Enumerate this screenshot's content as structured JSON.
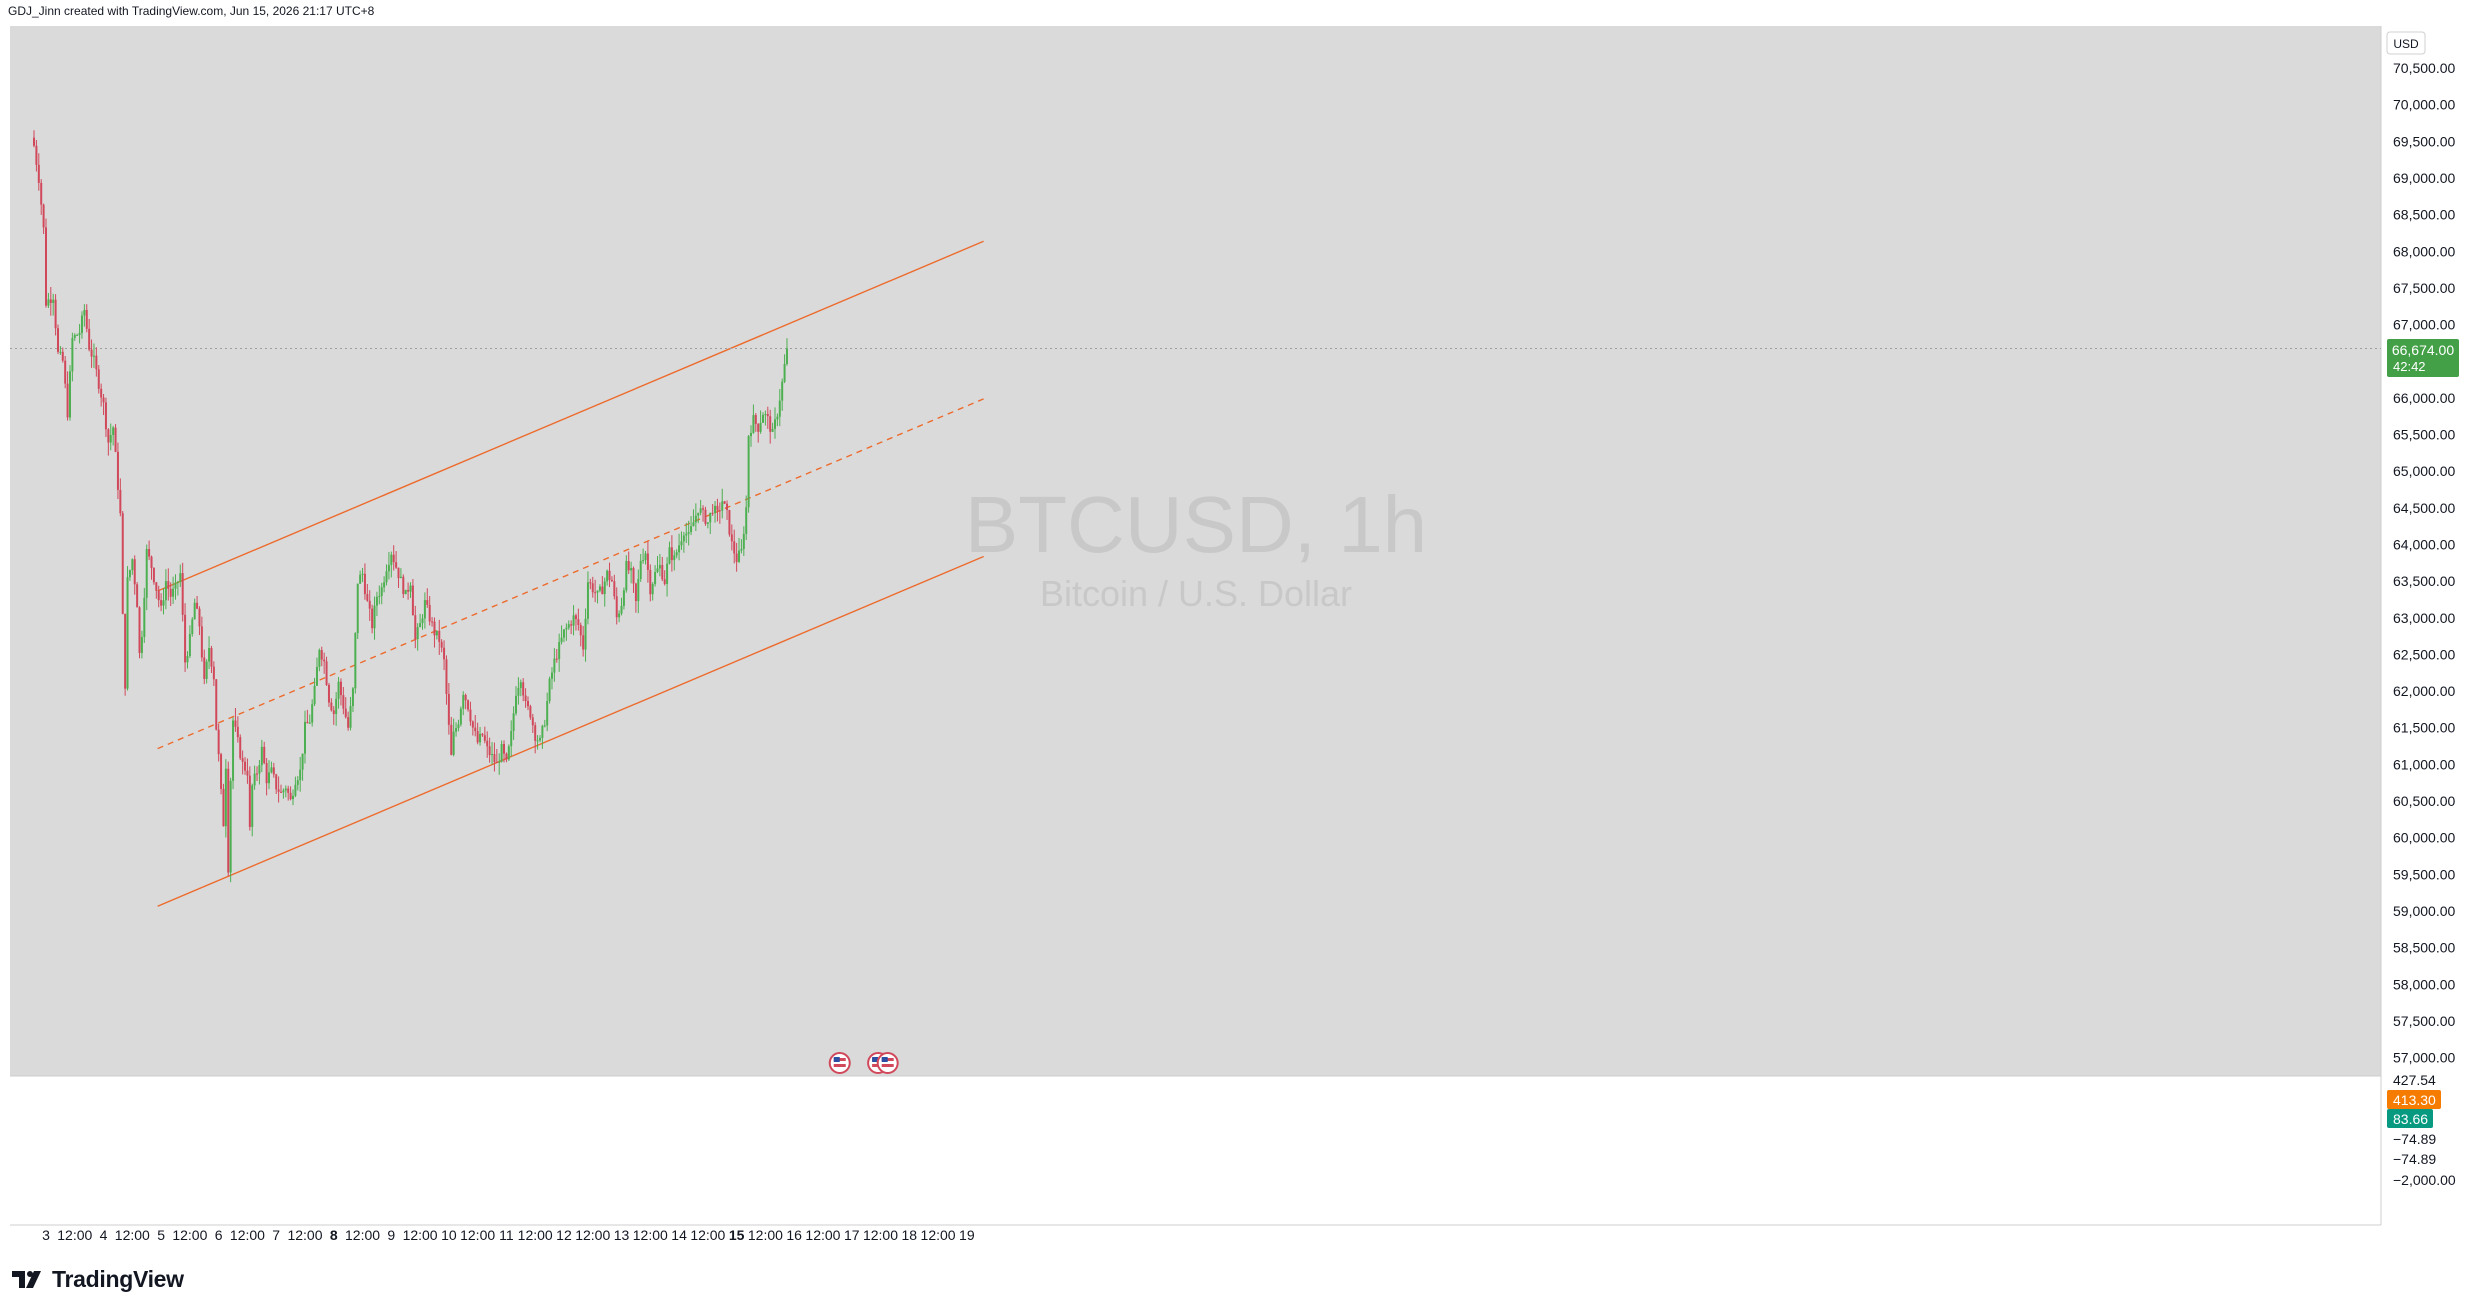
{
  "credit": "GDJ_Jinn created with TradingView.com, Jun 15, 2026 21:17 UTC+8",
  "brand": "TradingView",
  "currency": "USD",
  "watermark": {
    "symbol": "BTCUSD, 1h",
    "description": "Bitcoin / U.S. Dollar"
  },
  "colors": {
    "up": "#4caf50",
    "down": "#d0485a",
    "channel": "#ed6b2d",
    "last_price_bg": "#43a047",
    "pane_bg": "#dadada",
    "indicator_orange": "#f57c00",
    "indicator_teal": "#089981"
  },
  "chart_data": {
    "type": "candlestick",
    "symbol": "BTCUSD",
    "interval": "1h",
    "ylim": [
      56780,
      70680
    ],
    "y_ticks": [
      "70,500.00",
      "70,000.00",
      "69,500.00",
      "69,000.00",
      "68,500.00",
      "68,000.00",
      "67,500.00",
      "67,000.00",
      "66,500.00",
      "66,000.00",
      "65,500.00",
      "65,000.00",
      "64,500.00",
      "64,000.00",
      "63,500.00",
      "63,000.00",
      "62,500.00",
      "62,000.00",
      "61,500.00",
      "61,000.00",
      "60,500.00",
      "60,000.00",
      "59,500.00",
      "59,000.00",
      "58,500.00",
      "58,000.00",
      "57,500.00",
      "57,000.00"
    ],
    "time_ticks": [
      {
        "label": "3",
        "t": 0
      },
      {
        "label": "12:00",
        "t": 12
      },
      {
        "label": "4",
        "t": 24
      },
      {
        "label": "12:00",
        "t": 36
      },
      {
        "label": "5",
        "t": 48
      },
      {
        "label": "12:00",
        "t": 60
      },
      {
        "label": "6",
        "t": 72
      },
      {
        "label": "12:00",
        "t": 84
      },
      {
        "label": "7",
        "t": 96
      },
      {
        "label": "12:00",
        "t": 108
      },
      {
        "label": "8",
        "t": 120,
        "bold": true
      },
      {
        "label": "12:00",
        "t": 132
      },
      {
        "label": "9",
        "t": 144
      },
      {
        "label": "12:00",
        "t": 156
      },
      {
        "label": "10",
        "t": 168
      },
      {
        "label": "12:00",
        "t": 180
      },
      {
        "label": "11",
        "t": 192
      },
      {
        "label": "12:00",
        "t": 204
      },
      {
        "label": "12",
        "t": 216
      },
      {
        "label": "12:00",
        "t": 228
      },
      {
        "label": "13",
        "t": 240
      },
      {
        "label": "12:00",
        "t": 252
      },
      {
        "label": "14",
        "t": 264
      },
      {
        "label": "12:00",
        "t": 276
      },
      {
        "label": "15",
        "t": 288,
        "bold": true
      },
      {
        "label": "12:00",
        "t": 300
      },
      {
        "label": "16",
        "t": 312
      },
      {
        "label": "12:00",
        "t": 324
      },
      {
        "label": "17",
        "t": 336
      },
      {
        "label": "12:00",
        "t": 348
      },
      {
        "label": "18",
        "t": 360
      },
      {
        "label": "12:00",
        "t": 372
      },
      {
        "label": "19",
        "t": 384
      }
    ],
    "x_start_hours": -5.5,
    "x_end_hours": 392,
    "close_path": [
      {
        "t": -5.5,
        "p": 69550
      },
      {
        "t": -3,
        "p": 69000
      },
      {
        "t": -1,
        "p": 68300
      },
      {
        "t": 0,
        "p": 67300
      },
      {
        "t": 3,
        "p": 67400
      },
      {
        "t": 5,
        "p": 66600
      },
      {
        "t": 7,
        "p": 66500
      },
      {
        "t": 9,
        "p": 65800
      },
      {
        "t": 11,
        "p": 66800
      },
      {
        "t": 14,
        "p": 66900
      },
      {
        "t": 16,
        "p": 67200
      },
      {
        "t": 18,
        "p": 66700
      },
      {
        "t": 20,
        "p": 66500
      },
      {
        "t": 22,
        "p": 66200
      },
      {
        "t": 24,
        "p": 65900
      },
      {
        "t": 26,
        "p": 65400
      },
      {
        "t": 28,
        "p": 65600
      },
      {
        "t": 30,
        "p": 64800
      },
      {
        "t": 31,
        "p": 64400
      },
      {
        "t": 32,
        "p": 63000
      },
      {
        "t": 33,
        "p": 62100
      },
      {
        "t": 34,
        "p": 63500
      },
      {
        "t": 36,
        "p": 63800
      },
      {
        "t": 38,
        "p": 63200
      },
      {
        "t": 39,
        "p": 62500
      },
      {
        "t": 40,
        "p": 62800
      },
      {
        "t": 42,
        "p": 63900
      },
      {
        "t": 44,
        "p": 63700
      },
      {
        "t": 46,
        "p": 63400
      },
      {
        "t": 48,
        "p": 63100
      },
      {
        "t": 50,
        "p": 63500
      },
      {
        "t": 52,
        "p": 63300
      },
      {
        "t": 54,
        "p": 63400
      },
      {
        "t": 56,
        "p": 63600
      },
      {
        "t": 58,
        "p": 62400
      },
      {
        "t": 60,
        "p": 62700
      },
      {
        "t": 62,
        "p": 63200
      },
      {
        "t": 64,
        "p": 62900
      },
      {
        "t": 66,
        "p": 62100
      },
      {
        "t": 68,
        "p": 62600
      },
      {
        "t": 70,
        "p": 62200
      },
      {
        "t": 71,
        "p": 61500
      },
      {
        "t": 72,
        "p": 61100
      },
      {
        "t": 73,
        "p": 60600
      },
      {
        "t": 74,
        "p": 60200
      },
      {
        "t": 75,
        "p": 61000
      },
      {
        "t": 76,
        "p": 59600
      },
      {
        "t": 77,
        "p": 60800
      },
      {
        "t": 78,
        "p": 61600
      },
      {
        "t": 80,
        "p": 61300
      },
      {
        "t": 82,
        "p": 61000
      },
      {
        "t": 84,
        "p": 60900
      },
      {
        "t": 85,
        "p": 60100
      },
      {
        "t": 86,
        "p": 60700
      },
      {
        "t": 88,
        "p": 60900
      },
      {
        "t": 90,
        "p": 61200
      },
      {
        "t": 92,
        "p": 60800
      },
      {
        "t": 94,
        "p": 60900
      },
      {
        "t": 96,
        "p": 60700
      },
      {
        "t": 98,
        "p": 60600
      },
      {
        "t": 100,
        "p": 60700
      },
      {
        "t": 102,
        "p": 60500
      },
      {
        "t": 104,
        "p": 60800
      },
      {
        "t": 106,
        "p": 60900
      },
      {
        "t": 108,
        "p": 61500
      },
      {
        "t": 110,
        "p": 61600
      },
      {
        "t": 112,
        "p": 62000
      },
      {
        "t": 114,
        "p": 62600
      },
      {
        "t": 116,
        "p": 62400
      },
      {
        "t": 118,
        "p": 61900
      },
      {
        "t": 120,
        "p": 61700
      },
      {
        "t": 122,
        "p": 62100
      },
      {
        "t": 124,
        "p": 61800
      },
      {
        "t": 126,
        "p": 61500
      },
      {
        "t": 128,
        "p": 62000
      },
      {
        "t": 130,
        "p": 63500
      },
      {
        "t": 132,
        "p": 63600
      },
      {
        "t": 134,
        "p": 63200
      },
      {
        "t": 136,
        "p": 62900
      },
      {
        "t": 138,
        "p": 63300
      },
      {
        "t": 140,
        "p": 63400
      },
      {
        "t": 142,
        "p": 63700
      },
      {
        "t": 144,
        "p": 63900
      },
      {
        "t": 146,
        "p": 63700
      },
      {
        "t": 148,
        "p": 63500
      },
      {
        "t": 150,
        "p": 63300
      },
      {
        "t": 152,
        "p": 63500
      },
      {
        "t": 154,
        "p": 62700
      },
      {
        "t": 156,
        "p": 62900
      },
      {
        "t": 158,
        "p": 63200
      },
      {
        "t": 160,
        "p": 63000
      },
      {
        "t": 162,
        "p": 62800
      },
      {
        "t": 164,
        "p": 62700
      },
      {
        "t": 166,
        "p": 62400
      },
      {
        "t": 168,
        "p": 61500
      },
      {
        "t": 169,
        "p": 61100
      },
      {
        "t": 170,
        "p": 61400
      },
      {
        "t": 172,
        "p": 61600
      },
      {
        "t": 174,
        "p": 62000
      },
      {
        "t": 176,
        "p": 61800
      },
      {
        "t": 178,
        "p": 61500
      },
      {
        "t": 180,
        "p": 61300
      },
      {
        "t": 182,
        "p": 61400
      },
      {
        "t": 184,
        "p": 61200
      },
      {
        "t": 186,
        "p": 61100
      },
      {
        "t": 188,
        "p": 61000
      },
      {
        "t": 190,
        "p": 61200
      },
      {
        "t": 192,
        "p": 61000
      },
      {
        "t": 194,
        "p": 61400
      },
      {
        "t": 196,
        "p": 62000
      },
      {
        "t": 198,
        "p": 62200
      },
      {
        "t": 200,
        "p": 61800
      },
      {
        "t": 202,
        "p": 61700
      },
      {
        "t": 204,
        "p": 61400
      },
      {
        "t": 206,
        "p": 61300
      },
      {
        "t": 208,
        "p": 61600
      },
      {
        "t": 210,
        "p": 62100
      },
      {
        "t": 212,
        "p": 62400
      },
      {
        "t": 214,
        "p": 62600
      },
      {
        "t": 216,
        "p": 62800
      },
      {
        "t": 218,
        "p": 62900
      },
      {
        "t": 220,
        "p": 63000
      },
      {
        "t": 222,
        "p": 62900
      },
      {
        "t": 224,
        "p": 62600
      },
      {
        "t": 226,
        "p": 63500
      },
      {
        "t": 228,
        "p": 63400
      },
      {
        "t": 230,
        "p": 63300
      },
      {
        "t": 232,
        "p": 63400
      },
      {
        "t": 234,
        "p": 63600
      },
      {
        "t": 236,
        "p": 63500
      },
      {
        "t": 238,
        "p": 63000
      },
      {
        "t": 240,
        "p": 63200
      },
      {
        "t": 242,
        "p": 63700
      },
      {
        "t": 244,
        "p": 63600
      },
      {
        "t": 246,
        "p": 63200
      },
      {
        "t": 248,
        "p": 63800
      },
      {
        "t": 250,
        "p": 63900
      },
      {
        "t": 252,
        "p": 63400
      },
      {
        "t": 254,
        "p": 63600
      },
      {
        "t": 256,
        "p": 63700
      },
      {
        "t": 258,
        "p": 63500
      },
      {
        "t": 260,
        "p": 63900
      },
      {
        "t": 262,
        "p": 63800
      },
      {
        "t": 264,
        "p": 64000
      },
      {
        "t": 266,
        "p": 64200
      },
      {
        "t": 268,
        "p": 64100
      },
      {
        "t": 270,
        "p": 64300
      },
      {
        "t": 272,
        "p": 64500
      },
      {
        "t": 274,
        "p": 64400
      },
      {
        "t": 276,
        "p": 64300
      },
      {
        "t": 278,
        "p": 64500
      },
      {
        "t": 280,
        "p": 64400
      },
      {
        "t": 282,
        "p": 64600
      },
      {
        "t": 284,
        "p": 64400
      },
      {
        "t": 286,
        "p": 64000
      },
      {
        "t": 288,
        "p": 63800
      },
      {
        "t": 290,
        "p": 63900
      },
      {
        "t": 292,
        "p": 64500
      },
      {
        "t": 293,
        "p": 65500
      },
      {
        "t": 295,
        "p": 65700
      },
      {
        "t": 297,
        "p": 65600
      },
      {
        "t": 299,
        "p": 65800
      },
      {
        "t": 301,
        "p": 65700
      },
      {
        "t": 303,
        "p": 65500
      },
      {
        "t": 305,
        "p": 65800
      },
      {
        "t": 307,
        "p": 66200
      },
      {
        "t": 309,
        "p": 66674
      }
    ],
    "channel": {
      "upper": [
        {
          "t": 0,
          "p": 62700
        },
        {
          "t": 392,
          "p": 68150
        }
      ],
      "middle": [
        {
          "t": 0,
          "p": 60550
        },
        {
          "t": 392,
          "p": 66000
        }
      ],
      "lower": [
        {
          "t": 0,
          "p": 58400
        },
        {
          "t": 392,
          "p": 63850
        }
      ]
    },
    "last_price": {
      "value": "66,674.00",
      "countdown": "42:42",
      "p": 66674
    },
    "events": [
      {
        "t": 331
      },
      {
        "t": 347
      },
      {
        "t": 351
      }
    ],
    "indicator": {
      "labels": [
        "427.54",
        "413.30",
        "83.66",
        "−74.89",
        "−74.89",
        "−2,000.00"
      ]
    }
  }
}
